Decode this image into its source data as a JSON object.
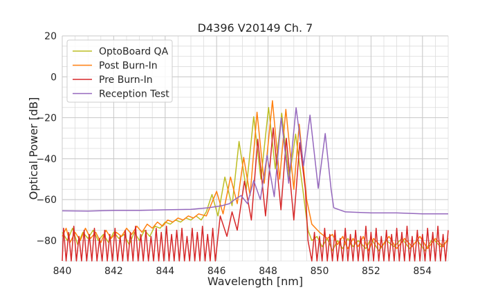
{
  "chart_data": {
    "type": "line",
    "title": "D4396 V20149 Ch. 7",
    "xlabel": "Wavelength [nm]",
    "ylabel": "Optical Power [dB]",
    "xlim": [
      840,
      855
    ],
    "ylim": [
      -90,
      20
    ],
    "xticks": [
      840,
      842,
      844,
      846,
      848,
      850,
      852,
      854
    ],
    "yticks": [
      20,
      0,
      -20,
      -40,
      -60,
      -80
    ],
    "xtick_labels": [
      "840",
      "842",
      "844",
      "846",
      "848",
      "850",
      "852",
      "854"
    ],
    "ytick_labels": [
      "20",
      "0",
      "−20",
      "−40",
      "−60",
      "−80"
    ],
    "grid": true,
    "minor_grid": true,
    "legend_placement": "upper-left",
    "series": [
      {
        "name": "OptoBoard QA",
        "color": "#bcbd22",
        "points": [
          [
            840,
            -76
          ],
          [
            840.2,
            -80
          ],
          [
            840.4,
            -74
          ],
          [
            840.6,
            -82
          ],
          [
            840.8,
            -76
          ],
          [
            841,
            -79
          ],
          [
            841.2,
            -75
          ],
          [
            841.4,
            -80
          ],
          [
            841.6,
            -77
          ],
          [
            841.8,
            -81
          ],
          [
            842,
            -76
          ],
          [
            842.2,
            -79
          ],
          [
            842.4,
            -77
          ],
          [
            842.6,
            -82
          ],
          [
            842.8,
            -76
          ],
          [
            843,
            -80
          ],
          [
            843.2,
            -75
          ],
          [
            843.4,
            -78
          ],
          [
            843.6,
            -73
          ],
          [
            843.8,
            -74
          ],
          [
            844,
            -71
          ],
          [
            844.2,
            -72
          ],
          [
            844.4,
            -70
          ],
          [
            844.6,
            -71
          ],
          [
            844.8,
            -69
          ],
          [
            845,
            -70
          ],
          [
            845.2,
            -68
          ],
          [
            845.4,
            -70
          ],
          [
            845.6,
            -66
          ],
          [
            845.82,
            -57.5
          ],
          [
            846.05,
            -68
          ],
          [
            846.32,
            -49
          ],
          [
            846.6,
            -63
          ],
          [
            846.87,
            -31.6
          ],
          [
            847.15,
            -55
          ],
          [
            847.44,
            -19.5
          ],
          [
            847.72,
            -50
          ],
          [
            848.02,
            -15
          ],
          [
            848.28,
            -45
          ],
          [
            848.53,
            -17.8
          ],
          [
            848.82,
            -50
          ],
          [
            849.07,
            -28
          ],
          [
            849.35,
            -55
          ],
          [
            849.55,
            -75
          ],
          [
            849.7,
            -80
          ],
          [
            849.9,
            -78
          ],
          [
            850.1,
            -83
          ],
          [
            850.3,
            -79
          ],
          [
            850.5,
            -85
          ],
          [
            850.7,
            -80
          ],
          [
            850.9,
            -84
          ],
          [
            851.1,
            -79
          ],
          [
            851.3,
            -83
          ],
          [
            851.5,
            -80
          ],
          [
            851.8,
            -84
          ],
          [
            852,
            -79
          ],
          [
            852.3,
            -85
          ],
          [
            852.6,
            -80
          ],
          [
            852.9,
            -83
          ],
          [
            853.2,
            -79
          ],
          [
            853.5,
            -84
          ],
          [
            853.8,
            -80
          ],
          [
            854.1,
            -85
          ],
          [
            854.4,
            -79
          ],
          [
            854.7,
            -83
          ],
          [
            855,
            -80
          ]
        ]
      },
      {
        "name": "Post Burn-In",
        "color": "#ff7f0e",
        "points": [
          [
            840,
            -78
          ],
          [
            840.15,
            -74
          ],
          [
            840.3,
            -81
          ],
          [
            840.5,
            -76
          ],
          [
            840.7,
            -80
          ],
          [
            840.9,
            -74
          ],
          [
            841.1,
            -79
          ],
          [
            841.3,
            -76
          ],
          [
            841.5,
            -81
          ],
          [
            841.7,
            -75
          ],
          [
            841.9,
            -79
          ],
          [
            842.1,
            -76
          ],
          [
            842.3,
            -78
          ],
          [
            842.5,
            -74
          ],
          [
            842.7,
            -77
          ],
          [
            842.9,
            -73
          ],
          [
            843.1,
            -76
          ],
          [
            843.3,
            -72
          ],
          [
            843.5,
            -74
          ],
          [
            843.7,
            -71
          ],
          [
            843.9,
            -73
          ],
          [
            844.1,
            -70
          ],
          [
            844.3,
            -71
          ],
          [
            844.5,
            -69
          ],
          [
            844.7,
            -70
          ],
          [
            844.9,
            -68
          ],
          [
            845.1,
            -69
          ],
          [
            845.3,
            -67
          ],
          [
            845.6,
            -68
          ],
          [
            846,
            -56
          ],
          [
            846.25,
            -67
          ],
          [
            846.54,
            -49
          ],
          [
            846.8,
            -62
          ],
          [
            847.05,
            -39.4
          ],
          [
            847.3,
            -58
          ],
          [
            847.57,
            -17.3
          ],
          [
            847.85,
            -52
          ],
          [
            848.17,
            -11.7
          ],
          [
            848.45,
            -50
          ],
          [
            848.69,
            -15.9
          ],
          [
            849,
            -55
          ],
          [
            849.21,
            -23.2
          ],
          [
            849.5,
            -60
          ],
          [
            849.7,
            -72
          ],
          [
            850,
            -76
          ],
          [
            850.3,
            -79
          ],
          [
            850.5,
            -77
          ],
          [
            850.7,
            -82
          ],
          [
            850.9,
            -78
          ],
          [
            851.1,
            -84
          ],
          [
            851.3,
            -79
          ],
          [
            851.5,
            -83
          ],
          [
            851.7,
            -78
          ],
          [
            851.9,
            -85
          ],
          [
            852.1,
            -79
          ],
          [
            852.4,
            -83
          ],
          [
            852.7,
            -78
          ],
          [
            853,
            -84
          ],
          [
            853.3,
            -79
          ],
          [
            853.6,
            -83
          ],
          [
            853.9,
            -78
          ],
          [
            854.2,
            -84
          ],
          [
            854.5,
            -79
          ],
          [
            854.8,
            -83
          ],
          [
            855,
            -79
          ]
        ]
      },
      {
        "name": "Pre Burn-In",
        "color": "#d62728",
        "points": [
          [
            840,
            -90
          ],
          [
            840.05,
            -74
          ],
          [
            840.15,
            -90
          ],
          [
            840.25,
            -76
          ],
          [
            840.35,
            -90
          ],
          [
            840.45,
            -73
          ],
          [
            840.55,
            -90
          ],
          [
            840.65,
            -78
          ],
          [
            840.75,
            -90
          ],
          [
            840.85,
            -75
          ],
          [
            840.95,
            -90
          ],
          [
            841.05,
            -77
          ],
          [
            841.15,
            -90
          ],
          [
            841.25,
            -74
          ],
          [
            841.35,
            -90
          ],
          [
            841.45,
            -79
          ],
          [
            841.55,
            -90
          ],
          [
            841.65,
            -75
          ],
          [
            841.75,
            -90
          ],
          [
            841.85,
            -77
          ],
          [
            841.95,
            -90
          ],
          [
            842.05,
            -74
          ],
          [
            842.15,
            -90
          ],
          [
            842.25,
            -78
          ],
          [
            842.35,
            -90
          ],
          [
            842.45,
            -75
          ],
          [
            842.55,
            -90
          ],
          [
            842.65,
            -76
          ],
          [
            842.75,
            -90
          ],
          [
            842.85,
            -73
          ],
          [
            842.95,
            -90
          ],
          [
            843.05,
            -77
          ],
          [
            843.15,
            -90
          ],
          [
            843.25,
            -75
          ],
          [
            843.35,
            -90
          ],
          [
            843.45,
            -78
          ],
          [
            843.55,
            -90
          ],
          [
            843.65,
            -74
          ],
          [
            843.75,
            -90
          ],
          [
            843.85,
            -76
          ],
          [
            843.95,
            -90
          ],
          [
            844.05,
            -73
          ],
          [
            844.15,
            -90
          ],
          [
            844.25,
            -77
          ],
          [
            844.35,
            -90
          ],
          [
            844.45,
            -75
          ],
          [
            844.55,
            -90
          ],
          [
            844.65,
            -74
          ],
          [
            844.75,
            -90
          ],
          [
            844.85,
            -78
          ],
          [
            844.95,
            -90
          ],
          [
            845.05,
            -74
          ],
          [
            845.15,
            -90
          ],
          [
            845.25,
            -76
          ],
          [
            845.35,
            -90
          ],
          [
            845.45,
            -73
          ],
          [
            845.55,
            -90
          ],
          [
            845.65,
            -77
          ],
          [
            845.75,
            -90
          ],
          [
            845.85,
            -74
          ],
          [
            845.95,
            -90
          ],
          [
            846.14,
            -68
          ],
          [
            846.4,
            -78
          ],
          [
            846.6,
            -66
          ],
          [
            846.8,
            -75
          ],
          [
            847.08,
            -51
          ],
          [
            847.35,
            -70
          ],
          [
            847.6,
            -30.5
          ],
          [
            847.9,
            -68
          ],
          [
            848.2,
            -24.9
          ],
          [
            848.5,
            -65
          ],
          [
            848.71,
            -30
          ],
          [
            849,
            -70
          ],
          [
            849.23,
            -32.2
          ],
          [
            849.45,
            -55
          ],
          [
            849.55,
            -80
          ],
          [
            849.7,
            -90
          ],
          [
            849.8,
            -76
          ],
          [
            849.9,
            -90
          ],
          [
            850,
            -78
          ],
          [
            850.1,
            -90
          ],
          [
            850.2,
            -74
          ],
          [
            850.3,
            -90
          ],
          [
            850.4,
            -77
          ],
          [
            850.5,
            -90
          ],
          [
            850.6,
            -75
          ],
          [
            850.7,
            -90
          ],
          [
            850.8,
            -79
          ],
          [
            850.9,
            -90
          ],
          [
            851,
            -74
          ],
          [
            851.1,
            -90
          ],
          [
            851.2,
            -77
          ],
          [
            851.3,
            -90
          ],
          [
            851.4,
            -75
          ],
          [
            851.5,
            -90
          ],
          [
            851.6,
            -78
          ],
          [
            851.7,
            -90
          ],
          [
            851.8,
            -73
          ],
          [
            851.9,
            -90
          ],
          [
            852,
            -76
          ],
          [
            852.1,
            -90
          ],
          [
            852.2,
            -74
          ],
          [
            852.3,
            -90
          ],
          [
            852.4,
            -78
          ],
          [
            852.5,
            -90
          ],
          [
            852.6,
            -75
          ],
          [
            852.7,
            -90
          ],
          [
            852.8,
            -77
          ],
          [
            852.9,
            -90
          ],
          [
            853,
            -74
          ],
          [
            853.1,
            -90
          ],
          [
            853.2,
            -76
          ],
          [
            853.3,
            -90
          ],
          [
            853.4,
            -73
          ],
          [
            853.5,
            -90
          ],
          [
            853.6,
            -78
          ],
          [
            853.7,
            -90
          ],
          [
            853.8,
            -75
          ],
          [
            853.9,
            -90
          ],
          [
            854,
            -77
          ],
          [
            854.1,
            -90
          ],
          [
            854.2,
            -74
          ],
          [
            854.3,
            -90
          ],
          [
            854.4,
            -76
          ],
          [
            854.5,
            -90
          ],
          [
            854.6,
            -73
          ],
          [
            854.7,
            -90
          ],
          [
            854.8,
            -77
          ],
          [
            854.9,
            -90
          ],
          [
            855,
            -75
          ]
        ]
      },
      {
        "name": "Reception Test",
        "color": "#9467bd",
        "points": [
          [
            840,
            -65.5
          ],
          [
            841,
            -65.6
          ],
          [
            842,
            -65.3
          ],
          [
            843,
            -65.3
          ],
          [
            844,
            -65
          ],
          [
            845,
            -64.8
          ],
          [
            845.7,
            -64
          ],
          [
            846.2,
            -63
          ],
          [
            846.5,
            -62
          ],
          [
            846.7,
            -60
          ],
          [
            846.95,
            -58
          ],
          [
            847.2,
            -62
          ],
          [
            847.44,
            -50.7
          ],
          [
            847.7,
            -60
          ],
          [
            847.96,
            -38.4
          ],
          [
            848.24,
            -58.6
          ],
          [
            848.51,
            -20
          ],
          [
            848.8,
            -52
          ],
          [
            849.09,
            -15.1
          ],
          [
            849.38,
            -43.5
          ],
          [
            849.63,
            -18.7
          ],
          [
            849.95,
            -54.5
          ],
          [
            850.22,
            -27.7
          ],
          [
            850.45,
            -55
          ],
          [
            850.55,
            -64
          ],
          [
            851,
            -66
          ],
          [
            852,
            -66.5
          ],
          [
            853,
            -66.5
          ],
          [
            854,
            -67
          ],
          [
            855,
            -67
          ]
        ]
      }
    ]
  }
}
